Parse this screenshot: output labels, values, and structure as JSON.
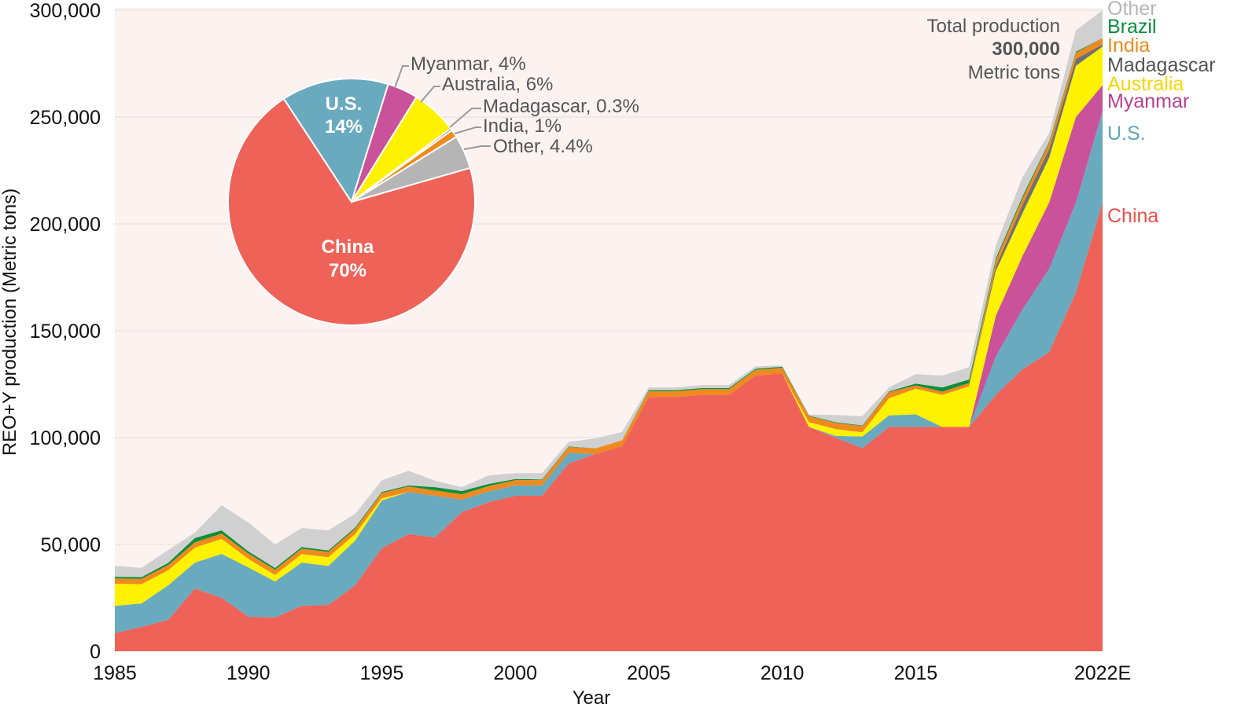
{
  "chart_data": {
    "type": "area",
    "stacked": true,
    "xlabel": "Year",
    "ylabel": "REO+Y production (Metric tons)",
    "ylim": [
      0,
      300000
    ],
    "yticks": [
      0,
      50000,
      100000,
      150000,
      200000,
      250000,
      300000
    ],
    "ytick_labels": [
      "0",
      "50,000",
      "100,000",
      "150,000",
      "200,000",
      "250,000",
      "300,000"
    ],
    "xlim": [
      1985,
      2022
    ],
    "xticks": [
      1985,
      1990,
      1995,
      2000,
      2005,
      2010,
      2015,
      2022
    ],
    "xtick_labels": [
      "1985",
      "1990",
      "1995",
      "2000",
      "2005",
      "2010",
      "2015",
      "2022E"
    ],
    "grid": "horizontal",
    "background": "#fcf3f1",
    "x": [
      1985,
      1986,
      1987,
      1988,
      1989,
      1990,
      1991,
      1992,
      1993,
      1994,
      1995,
      1996,
      1997,
      1998,
      1999,
      2000,
      2001,
      2002,
      2003,
      2004,
      2005,
      2006,
      2007,
      2008,
      2009,
      2010,
      2011,
      2012,
      2013,
      2014,
      2015,
      2016,
      2017,
      2018,
      2019,
      2020,
      2021,
      2022
    ],
    "series": [
      {
        "name": "China",
        "color": "#ef6258",
        "values": [
          8500,
          11400,
          14700,
          29400,
          25000,
          16200,
          15800,
          21300,
          21700,
          30900,
          48200,
          54800,
          53300,
          65100,
          69800,
          72800,
          72800,
          87900,
          92300,
          96000,
          119000,
          119000,
          120000,
          120000,
          129000,
          130000,
          105000,
          100000,
          95000,
          105000,
          105000,
          105000,
          105000,
          120000,
          132000,
          140000,
          168000,
          210000
        ]
      },
      {
        "name": "U.S.",
        "color": "#6aaabe",
        "values": [
          12800,
          11000,
          16200,
          12100,
          20600,
          23100,
          16900,
          20200,
          18300,
          20900,
          22400,
          19800,
          19500,
          5900,
          5000,
          4800,
          4800,
          5000,
          0,
          0,
          0,
          0,
          0,
          0,
          0,
          0,
          0,
          800,
          5500,
          5400,
          5900,
          0,
          0,
          18000,
          28000,
          39000,
          42000,
          43000
        ]
      },
      {
        "name": "Myanmar",
        "color": "#c9529a",
        "values": [
          0,
          0,
          0,
          0,
          0,
          0,
          0,
          0,
          0,
          0,
          0,
          0,
          0,
          0,
          0,
          0,
          0,
          0,
          0,
          0,
          0,
          0,
          0,
          0,
          0,
          0,
          0,
          0,
          0,
          0,
          0,
          0,
          0,
          19000,
          25000,
          31000,
          40000,
          12000
        ]
      },
      {
        "name": "Australia",
        "color": "#fff200",
        "values": [
          10300,
          9000,
          7000,
          7000,
          7000,
          4000,
          3000,
          4000,
          4000,
          3000,
          1000,
          0,
          0,
          0,
          0,
          0,
          0,
          0,
          0,
          0,
          0,
          0,
          0,
          0,
          0,
          0,
          2200,
          3200,
          2000,
          8000,
          12000,
          15000,
          19000,
          21000,
          20000,
          21000,
          24000,
          18000
        ]
      },
      {
        "name": "Madagascar",
        "color": "#707070",
        "values": [
          0,
          0,
          0,
          0,
          0,
          0,
          0,
          0,
          0,
          0,
          0,
          0,
          0,
          0,
          0,
          0,
          0,
          0,
          0,
          0,
          0,
          0,
          0,
          0,
          0,
          0,
          0,
          0,
          0,
          0,
          0,
          0,
          0,
          2000,
          4000,
          4000,
          3200,
          960
        ]
      },
      {
        "name": "India",
        "color": "#ef8a1e",
        "values": [
          2500,
          2500,
          2500,
          2500,
          2500,
          2500,
          2500,
          2500,
          2500,
          2500,
          2500,
          2500,
          2500,
          2500,
          2500,
          2500,
          2500,
          2700,
          2700,
          2700,
          2700,
          2700,
          2700,
          2700,
          2700,
          2700,
          2800,
          2900,
          2900,
          2900,
          1500,
          1500,
          1500,
          2900,
          2900,
          2900,
          2900,
          2900
        ]
      },
      {
        "name": "Brazil",
        "color": "#0a8f3c",
        "values": [
          800,
          800,
          1000,
          2000,
          1500,
          1000,
          800,
          800,
          700,
          600,
          500,
          500,
          1500,
          1500,
          1000,
          500,
          300,
          300,
          0,
          0,
          500,
          500,
          500,
          500,
          500,
          500,
          300,
          300,
          300,
          300,
          900,
          2000,
          1700,
          1000,
          1000,
          600,
          500,
          80
        ]
      },
      {
        "name": "Other",
        "color": "#d0d0d0",
        "values": [
          5100,
          4300,
          6000,
          2500,
          11800,
          13500,
          11000,
          8900,
          9400,
          6400,
          5400,
          6900,
          3000,
          1800,
          4000,
          2800,
          3000,
          2100,
          4600,
          3900,
          1300,
          1300,
          1400,
          1400,
          1200,
          600,
          500,
          3400,
          4300,
          1900,
          4400,
          5500,
          5800,
          6100,
          9100,
          4000,
          10000,
          13060
        ]
      }
    ],
    "annotation": {
      "line1": "Total production",
      "line2": "300,000",
      "line3": "Metric tons"
    },
    "inset_pie": {
      "type": "pie",
      "slices": [
        {
          "name": "China",
          "value": 70,
          "label_line1": "China",
          "label_line2": "70%",
          "color": "#ef6258"
        },
        {
          "name": "U.S.",
          "value": 14,
          "label_line1": "U.S.",
          "label_line2": "14%",
          "color": "#6aaabe"
        },
        {
          "name": "Myanmar",
          "value": 4,
          "label": "Myanmar, 4%",
          "color": "#c9529a"
        },
        {
          "name": "Australia",
          "value": 6,
          "label": "Australia, 6%",
          "color": "#fff200"
        },
        {
          "name": "Madagascar",
          "value": 0.3,
          "label": "Madagascar, 0.3%",
          "color": "#707070"
        },
        {
          "name": "India",
          "value": 1,
          "label": "India, 1%",
          "color": "#ef8a1e"
        },
        {
          "name": "Other",
          "value": 4.4,
          "label": "Other, 4.4%",
          "color": "#b5b5b5"
        }
      ]
    }
  }
}
